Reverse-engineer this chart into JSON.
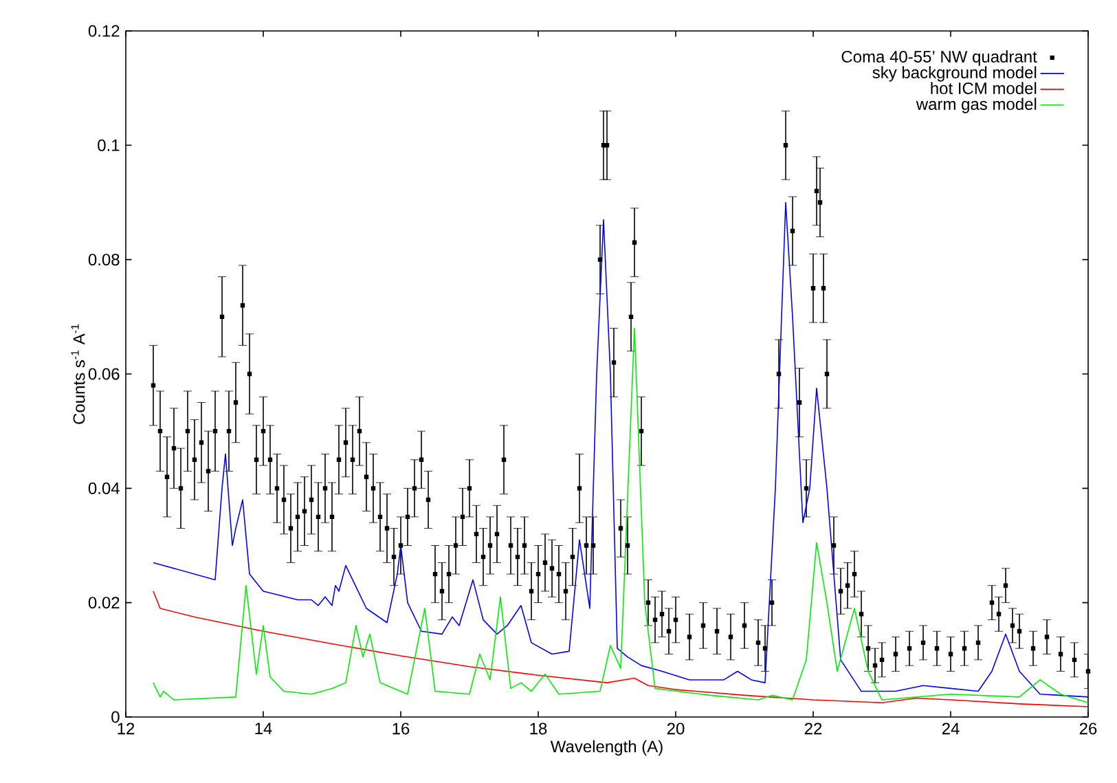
{
  "chart_data": {
    "type": "line",
    "xlabel": "Wavelength (A)",
    "ylabel": "Counts s$^{-1}$ A$^{-1}$",
    "xlim": [
      12,
      26
    ],
    "xticks": [
      12,
      14,
      16,
      18,
      20,
      22,
      24,
      26
    ],
    "ylim": [
      0,
      0.12
    ],
    "yticks": [
      0,
      0.02,
      0.04,
      0.06,
      0.08,
      0.1,
      0.12
    ],
    "legend": "top right",
    "grid": false,
    "series": [
      {
        "name": "Coma 40-55’ NW quadrant",
        "type": "scatter",
        "marker": "square",
        "color": "#000000",
        "x": [
          12.4,
          12.5,
          12.6,
          12.7,
          12.8,
          12.9,
          13.0,
          13.1,
          13.2,
          13.3,
          13.4,
          13.5,
          13.6,
          13.7,
          13.8,
          13.9,
          14.0,
          14.1,
          14.2,
          14.3,
          14.4,
          14.5,
          14.6,
          14.7,
          14.8,
          14.9,
          15.0,
          15.1,
          15.2,
          15.3,
          15.4,
          15.5,
          15.6,
          15.7,
          15.8,
          15.9,
          16.0,
          16.1,
          16.2,
          16.3,
          16.4,
          16.5,
          16.6,
          16.7,
          16.8,
          16.9,
          17.0,
          17.1,
          17.2,
          17.3,
          17.4,
          17.5,
          17.6,
          17.7,
          17.8,
          17.9,
          18.0,
          18.1,
          18.2,
          18.3,
          18.4,
          18.5,
          18.6,
          18.7,
          18.8,
          18.9,
          18.95,
          19.0,
          19.1,
          19.2,
          19.3,
          19.35,
          19.4,
          19.5,
          19.6,
          19.7,
          19.8,
          19.9,
          20.0,
          20.2,
          20.4,
          20.6,
          20.8,
          21.0,
          21.2,
          21.3,
          21.4,
          21.5,
          21.6,
          21.7,
          21.8,
          21.9,
          22.0,
          22.05,
          22.1,
          22.15,
          22.2,
          22.3,
          22.4,
          22.5,
          22.6,
          22.7,
          22.8,
          22.9,
          23.0,
          23.2,
          23.4,
          23.6,
          23.8,
          24.0,
          24.2,
          24.4,
          24.6,
          24.7,
          24.8,
          24.9,
          25.0,
          25.2,
          25.4,
          25.6,
          25.8,
          26.0
        ],
        "values": [
          0.058,
          0.05,
          0.042,
          0.047,
          0.04,
          0.05,
          0.045,
          0.048,
          0.043,
          0.05,
          0.07,
          0.05,
          0.055,
          0.072,
          0.06,
          0.045,
          0.05,
          0.045,
          0.04,
          0.038,
          0.033,
          0.035,
          0.036,
          0.038,
          0.035,
          0.04,
          0.035,
          0.045,
          0.048,
          0.045,
          0.05,
          0.042,
          0.04,
          0.035,
          0.033,
          0.028,
          0.03,
          0.035,
          0.04,
          0.045,
          0.038,
          0.025,
          0.022,
          0.025,
          0.03,
          0.035,
          0.04,
          0.032,
          0.028,
          0.03,
          0.032,
          0.045,
          0.03,
          0.028,
          0.03,
          0.022,
          0.025,
          0.027,
          0.026,
          0.025,
          0.022,
          0.028,
          0.04,
          0.03,
          0.03,
          0.08,
          0.1,
          0.1,
          0.062,
          0.033,
          0.03,
          0.07,
          0.083,
          0.05,
          0.02,
          0.017,
          0.018,
          0.015,
          0.017,
          0.014,
          0.016,
          0.015,
          0.014,
          0.016,
          0.013,
          0.012,
          0.02,
          0.06,
          0.1,
          0.085,
          0.055,
          0.04,
          0.075,
          0.092,
          0.09,
          0.075,
          0.06,
          0.03,
          0.022,
          0.023,
          0.025,
          0.018,
          0.012,
          0.009,
          0.01,
          0.011,
          0.012,
          0.013,
          0.012,
          0.011,
          0.012,
          0.013,
          0.02,
          0.018,
          0.023,
          0.016,
          0.015,
          0.012,
          0.014,
          0.011,
          0.01,
          0.008
        ],
        "errors": [
          0.007,
          0.007,
          0.007,
          0.007,
          0.007,
          0.007,
          0.007,
          0.007,
          0.007,
          0.007,
          0.007,
          0.007,
          0.007,
          0.007,
          0.007,
          0.006,
          0.006,
          0.006,
          0.006,
          0.006,
          0.006,
          0.006,
          0.006,
          0.006,
          0.006,
          0.006,
          0.006,
          0.006,
          0.006,
          0.006,
          0.006,
          0.006,
          0.006,
          0.006,
          0.006,
          0.005,
          0.005,
          0.005,
          0.005,
          0.005,
          0.005,
          0.005,
          0.005,
          0.005,
          0.005,
          0.005,
          0.005,
          0.005,
          0.005,
          0.005,
          0.005,
          0.006,
          0.005,
          0.005,
          0.005,
          0.005,
          0.005,
          0.005,
          0.005,
          0.005,
          0.005,
          0.005,
          0.006,
          0.005,
          0.005,
          0.006,
          0.006,
          0.006,
          0.006,
          0.005,
          0.005,
          0.006,
          0.006,
          0.006,
          0.004,
          0.004,
          0.004,
          0.004,
          0.004,
          0.004,
          0.004,
          0.004,
          0.004,
          0.004,
          0.004,
          0.004,
          0.004,
          0.006,
          0.006,
          0.006,
          0.006,
          0.005,
          0.006,
          0.006,
          0.006,
          0.006,
          0.006,
          0.005,
          0.004,
          0.004,
          0.004,
          0.004,
          0.004,
          0.003,
          0.003,
          0.003,
          0.003,
          0.003,
          0.003,
          0.003,
          0.003,
          0.003,
          0.003,
          0.003,
          0.003,
          0.003,
          0.003,
          0.003,
          0.003,
          0.003,
          0.003,
          0.003
        ]
      },
      {
        "name": "sky background model",
        "marker": "none",
        "color": "#0000ff",
        "x": [
          12.4,
          13.3,
          13.4,
          13.45,
          13.55,
          13.6,
          13.7,
          13.8,
          14.0,
          14.5,
          14.7,
          14.8,
          14.9,
          15.0,
          15.05,
          15.1,
          15.2,
          15.3,
          15.5,
          15.8,
          15.95,
          16.0,
          16.1,
          16.3,
          16.6,
          16.75,
          16.85,
          17.05,
          17.2,
          17.4,
          17.55,
          17.75,
          17.9,
          18.2,
          18.45,
          18.6,
          18.75,
          18.85,
          18.95,
          19.05,
          19.15,
          19.3,
          19.5,
          19.8,
          20.2,
          20.7,
          20.9,
          21.1,
          21.3,
          21.45,
          21.6,
          21.7,
          21.85,
          21.95,
          22.05,
          22.2,
          22.4,
          22.7,
          23.2,
          23.6,
          24.0,
          24.4,
          24.6,
          24.8,
          25.0,
          25.3,
          26.0
        ],
        "values": [
          0.027,
          0.024,
          0.04,
          0.046,
          0.03,
          0.033,
          0.038,
          0.025,
          0.022,
          0.0205,
          0.0205,
          0.0195,
          0.021,
          0.0195,
          0.023,
          0.022,
          0.0265,
          0.024,
          0.019,
          0.0165,
          0.025,
          0.03,
          0.02,
          0.015,
          0.0145,
          0.0175,
          0.016,
          0.024,
          0.017,
          0.0145,
          0.016,
          0.0195,
          0.013,
          0.011,
          0.0115,
          0.031,
          0.019,
          0.06,
          0.087,
          0.06,
          0.012,
          0.0105,
          0.009,
          0.008,
          0.0065,
          0.0065,
          0.008,
          0.0065,
          0.006,
          0.04,
          0.09,
          0.07,
          0.034,
          0.04,
          0.0575,
          0.04,
          0.01,
          0.0045,
          0.0045,
          0.0055,
          0.005,
          0.0045,
          0.008,
          0.0145,
          0.008,
          0.004,
          0.0035
        ]
      },
      {
        "name": "hot ICM model",
        "marker": "none",
        "color": "#ff0000",
        "x": [
          12.4,
          12.5,
          13,
          14,
          15,
          16,
          17,
          18,
          19,
          19.4,
          19.6,
          20,
          21,
          22,
          23,
          23.5,
          24,
          25,
          26
        ],
        "values": [
          0.022,
          0.019,
          0.0175,
          0.015,
          0.0128,
          0.0107,
          0.0088,
          0.0073,
          0.006,
          0.0068,
          0.0055,
          0.0048,
          0.0038,
          0.003,
          0.0025,
          0.0033,
          0.003,
          0.0023,
          0.0018
        ]
      },
      {
        "name": "warm gas model",
        "marker": "none",
        "color": "#00ee00",
        "x": [
          12.4,
          12.5,
          12.55,
          12.7,
          13.6,
          13.75,
          13.9,
          14.0,
          14.1,
          14.3,
          14.7,
          15.0,
          15.2,
          15.35,
          15.45,
          15.55,
          15.7,
          16.1,
          16.35,
          16.5,
          17.0,
          17.15,
          17.3,
          17.45,
          17.6,
          17.75,
          17.9,
          18.1,
          18.3,
          18.9,
          19.05,
          19.2,
          19.4,
          19.55,
          19.7,
          20.5,
          21.2,
          21.4,
          21.7,
          21.9,
          22.05,
          22.2,
          22.35,
          22.6,
          22.8,
          23.0,
          24.0,
          25.0,
          25.3,
          25.6,
          26.0
        ],
        "values": [
          0.006,
          0.0035,
          0.0045,
          0.003,
          0.0035,
          0.023,
          0.0075,
          0.016,
          0.007,
          0.0045,
          0.004,
          0.005,
          0.006,
          0.016,
          0.0105,
          0.0145,
          0.006,
          0.004,
          0.019,
          0.0045,
          0.004,
          0.011,
          0.0065,
          0.021,
          0.005,
          0.006,
          0.0045,
          0.0075,
          0.004,
          0.0045,
          0.0125,
          0.0085,
          0.068,
          0.02,
          0.005,
          0.0038,
          0.003,
          0.0038,
          0.003,
          0.01,
          0.0305,
          0.02,
          0.008,
          0.019,
          0.008,
          0.003,
          0.004,
          0.0035,
          0.0065,
          0.004,
          0.0025
        ]
      }
    ]
  }
}
